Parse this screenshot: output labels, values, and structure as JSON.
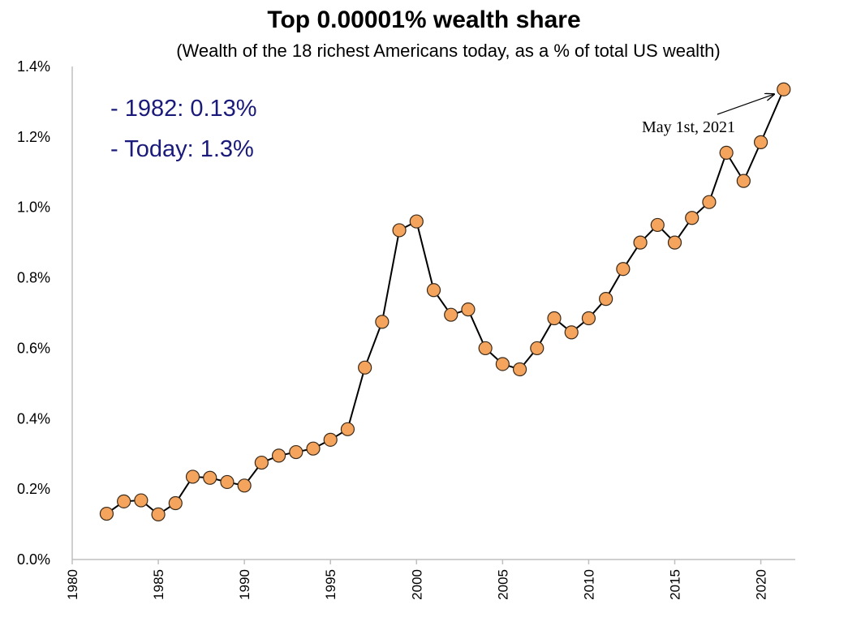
{
  "chart_data": {
    "type": "line",
    "title": "Top 0.00001% wealth share",
    "subtitle": "(Wealth of the 18 richest Americans today, as a % of total US wealth)",
    "stats": [
      "- 1982: 0.13%",
      "- Today: 1.3%"
    ],
    "xlim": [
      1980,
      2022
    ],
    "ylim": [
      0,
      1.4
    ],
    "x_ticks": [
      "1980",
      "1985",
      "1990",
      "1995",
      "2000",
      "2005",
      "2010",
      "2015",
      "2020"
    ],
    "y_ticks": [
      "0.0%",
      "0.2%",
      "0.4%",
      "0.6%",
      "0.8%",
      "1.0%",
      "1.2%",
      "1.4%"
    ],
    "x": [
      1982,
      1983,
      1984,
      1985,
      1986,
      1987,
      1988,
      1989,
      1990,
      1991,
      1992,
      1993,
      1994,
      1995,
      1996,
      1997,
      1998,
      1999,
      2000,
      2001,
      2002,
      2003,
      2004,
      2005,
      2006,
      2007,
      2008,
      2009,
      2010,
      2011,
      2012,
      2013,
      2014,
      2015,
      2016,
      2017,
      2018,
      2019,
      2020,
      2021.33
    ],
    "values": [
      0.13,
      0.165,
      0.168,
      0.128,
      0.16,
      0.235,
      0.232,
      0.22,
      0.21,
      0.275,
      0.295,
      0.305,
      0.315,
      0.34,
      0.37,
      0.545,
      0.675,
      0.935,
      0.96,
      0.765,
      0.695,
      0.71,
      0.6,
      0.555,
      0.54,
      0.6,
      0.685,
      0.645,
      0.685,
      0.74,
      0.825,
      0.9,
      0.95,
      0.9,
      0.97,
      1.015,
      1.155,
      1.075,
      1.185,
      1.335
    ],
    "annotation": {
      "text": "May 1st, 2021",
      "x": 2021.33,
      "y": 1.335
    },
    "colors": {
      "marker": "#f5a45d",
      "line": "#000000",
      "stats": "#1a1a7a"
    }
  }
}
